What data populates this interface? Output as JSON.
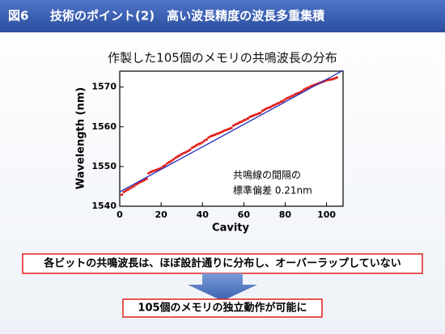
{
  "header": {
    "figure_label": "図6",
    "title": "技術のポイント(2)　高い波長精度の波長多重集積"
  },
  "chart_data": {
    "type": "scatter",
    "title": "作製した105個のメモリの共鳴波長の分布",
    "x_label": "Cavity",
    "y_label": "Wavelength (nm)",
    "xlim": [
      0,
      108
    ],
    "ylim": [
      1540,
      1574
    ],
    "xticks": [
      0,
      20,
      40,
      60,
      80,
      100
    ],
    "yticks": [
      1540,
      1550,
      1560,
      1570
    ],
    "annotation": [
      "共鳴線の間隔の",
      "標準偏差 0.21nm"
    ],
    "series": [
      {
        "color": "#e0201c",
        "x": [
          1,
          2,
          3,
          4,
          5,
          6,
          7,
          8,
          9,
          10,
          11,
          12,
          13,
          14,
          15,
          16,
          17,
          18,
          19,
          20,
          21,
          22,
          23,
          24,
          25,
          26,
          27,
          28,
          29,
          30,
          31,
          32,
          33,
          34,
          35,
          36,
          37,
          38,
          39,
          40,
          41,
          42,
          43,
          44,
          45,
          46,
          47,
          48,
          49,
          50,
          51,
          52,
          53,
          54,
          55,
          56,
          57,
          58,
          59,
          60,
          61,
          62,
          63,
          64,
          65,
          66,
          67,
          68,
          69,
          70,
          71,
          72,
          73,
          74,
          75,
          76,
          77,
          78,
          79,
          80,
          81,
          82,
          83,
          84,
          85,
          86,
          87,
          88,
          89,
          90,
          91,
          92,
          93,
          94,
          95,
          96,
          97,
          98,
          99,
          100,
          101,
          102,
          103,
          104,
          105
        ],
        "values": [
          1542.9,
          1543.6,
          1543.9,
          1544.2,
          1544.5,
          1544.8,
          1545.1,
          1545.5,
          1545.8,
          1546.1,
          1546.3,
          1546.6,
          1546.9,
          1548.3,
          1548.6,
          1548.8,
          1549.0,
          1549.2,
          1549.4,
          1549.6,
          1550.0,
          1550.3,
          1550.8,
          1551.1,
          1551.4,
          1551.8,
          1552.2,
          1552.5,
          1552.8,
          1553.1,
          1553.4,
          1553.6,
          1553.9,
          1554.2,
          1554.7,
          1555.0,
          1555.3,
          1555.6,
          1555.8,
          1556.1,
          1556.5,
          1556.8,
          1557.3,
          1557.6,
          1557.8,
          1558.0,
          1558.2,
          1558.4,
          1558.6,
          1558.9,
          1559.1,
          1559.3,
          1559.5,
          1559.7,
          1560.3,
          1560.6,
          1560.8,
          1561.1,
          1561.3,
          1561.6,
          1561.8,
          1562.1,
          1562.5,
          1562.7,
          1562.9,
          1563.1,
          1563.3,
          1563.5,
          1564.0,
          1564.3,
          1564.6,
          1564.8,
          1565.0,
          1565.3,
          1565.5,
          1565.8,
          1566.0,
          1566.3,
          1566.5,
          1566.9,
          1567.2,
          1567.4,
          1567.7,
          1567.9,
          1568.2,
          1568.4,
          1568.6,
          1568.9,
          1569.3,
          1569.6,
          1569.8,
          1570.1,
          1570.3,
          1570.5,
          1570.7,
          1570.9,
          1571.1,
          1571.3,
          1571.5,
          1571.7,
          1571.8,
          1571.9,
          1572.0,
          1572.2,
          1572.4
        ]
      },
      {
        "type": "line",
        "color": "#1f2fbf",
        "x": [
          0,
          108
        ],
        "values": [
          1543.6,
          1574.2
        ]
      }
    ]
  },
  "conclusion": "各ビットの共鳴波長は、ほぼ設計通りに分布し、オーバーラップしていない",
  "result": "105個のメモリの独立動作が可能に"
}
